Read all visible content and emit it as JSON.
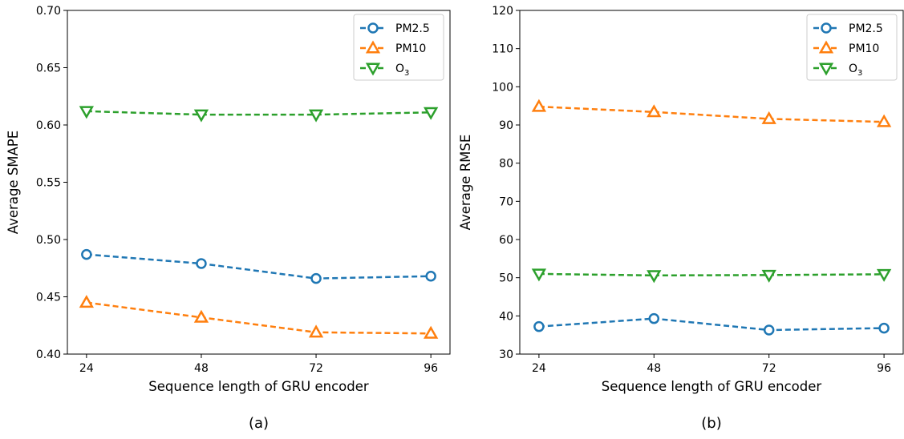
{
  "colors": {
    "pm25": "#1f77b4",
    "pm10": "#ff7f0e",
    "o3": "#2ca02c"
  },
  "chart_data": [
    {
      "type": "line",
      "caption": "(a)",
      "xlabel": "Sequence length of GRU encoder",
      "ylabel": "Average SMAPE",
      "x": [
        24,
        48,
        72,
        96
      ],
      "xticks": [
        "24",
        "48",
        "72",
        "96"
      ],
      "xlim": [
        20,
        100
      ],
      "ylim": [
        0.4,
        0.7
      ],
      "yticks": [
        "0.40",
        "0.45",
        "0.50",
        "0.55",
        "0.60",
        "0.65",
        "0.70"
      ],
      "legend": "top-right",
      "series": [
        {
          "name": "PM2.5",
          "marker": "circle",
          "color": "#1f77b4",
          "values": [
            0.487,
            0.479,
            0.466,
            0.468
          ]
        },
        {
          "name": "PM10",
          "marker": "triangle-up",
          "color": "#ff7f0e",
          "values": [
            0.445,
            0.432,
            0.419,
            0.418
          ]
        },
        {
          "name": "O",
          "name_sub": "3",
          "marker": "triangle-down",
          "color": "#2ca02c",
          "values": [
            0.612,
            0.609,
            0.609,
            0.611
          ]
        }
      ]
    },
    {
      "type": "line",
      "caption": "(b)",
      "xlabel": "Sequence length of GRU encoder",
      "ylabel": "Average RMSE",
      "x": [
        24,
        48,
        72,
        96
      ],
      "xticks": [
        "24",
        "48",
        "72",
        "96"
      ],
      "xlim": [
        20,
        100
      ],
      "ylim": [
        30,
        120
      ],
      "yticks": [
        "30",
        "40",
        "50",
        "60",
        "70",
        "80",
        "90",
        "100",
        "110",
        "120"
      ],
      "legend": "top-right",
      "series": [
        {
          "name": "PM2.5",
          "marker": "circle",
          "color": "#1f77b4",
          "values": [
            37.2,
            39.3,
            36.3,
            36.8
          ]
        },
        {
          "name": "PM10",
          "marker": "triangle-up",
          "color": "#ff7f0e",
          "values": [
            94.8,
            93.4,
            91.6,
            90.8
          ]
        },
        {
          "name": "O",
          "name_sub": "3",
          "marker": "triangle-down",
          "color": "#2ca02c",
          "values": [
            51.0,
            50.6,
            50.7,
            50.9
          ]
        }
      ]
    }
  ]
}
